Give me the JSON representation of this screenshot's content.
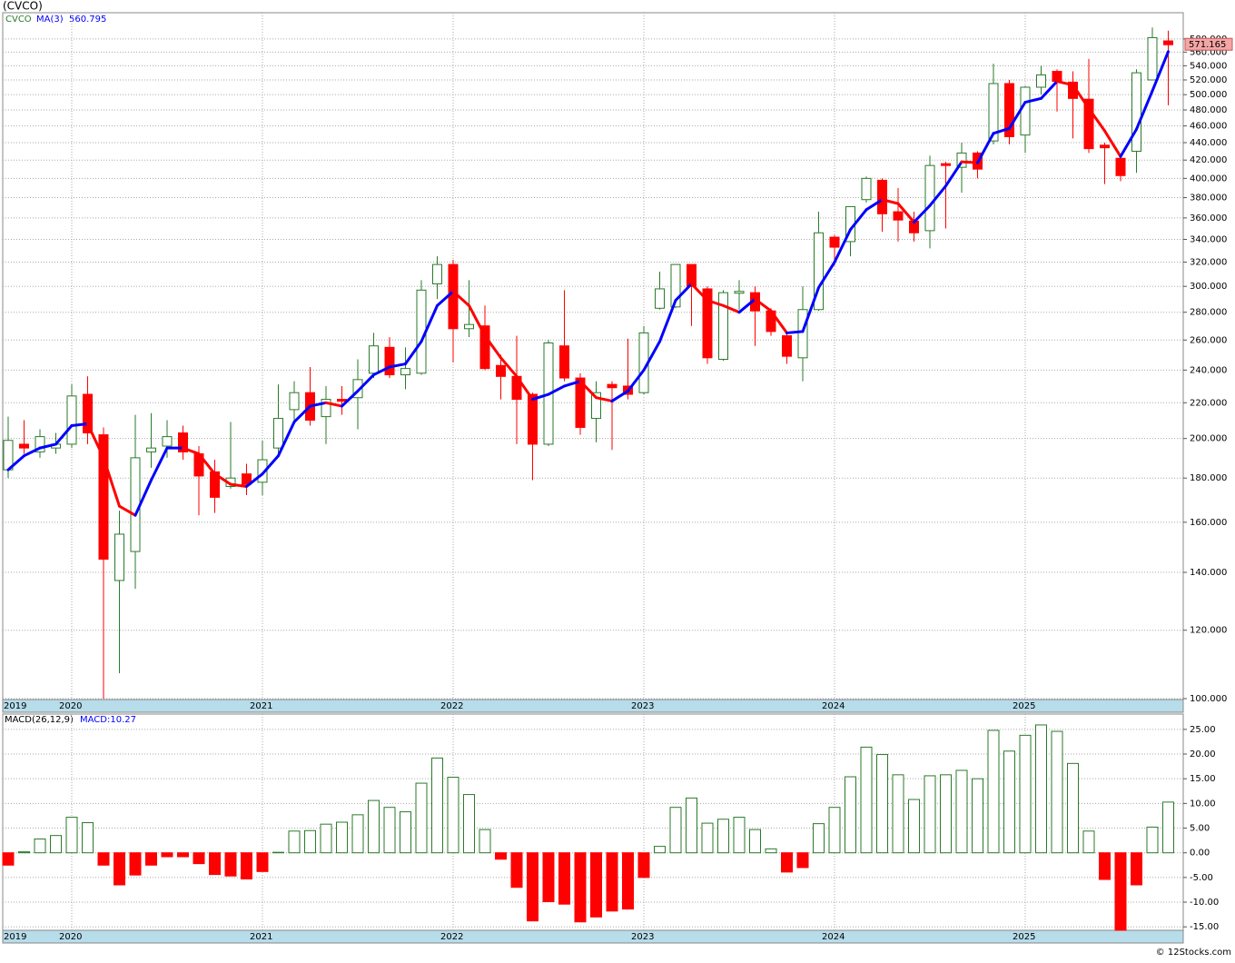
{
  "chart_data": [
    {
      "type": "candlestick",
      "title": "(CVCO)",
      "name": "CVCO",
      "categories": [
        "2019",
        null,
        null,
        null,
        "2020",
        null,
        null,
        null,
        null,
        null,
        null,
        null,
        null,
        null,
        null,
        null,
        "2021",
        null,
        null,
        null,
        null,
        null,
        null,
        null,
        null,
        null,
        null,
        null,
        "2022",
        null,
        null,
        null,
        null,
        null,
        null,
        null,
        null,
        null,
        null,
        null,
        "2023",
        null,
        null,
        null,
        null,
        null,
        null,
        null,
        null,
        null,
        null,
        null,
        "2024",
        null,
        null,
        null,
        null,
        null,
        null,
        null,
        null,
        null,
        null,
        null,
        "2025",
        null,
        null,
        null,
        null,
        null,
        null,
        null,
        null,
        null
      ],
      "open": [
        184,
        197,
        193,
        195,
        197,
        225,
        202,
        137,
        148,
        193,
        196,
        203,
        192,
        183,
        176,
        182,
        178,
        195,
        216,
        226,
        212,
        222,
        223,
        238,
        255,
        237,
        238,
        302,
        318,
        268,
        270,
        243,
        236,
        225,
        197,
        256,
        235,
        211,
        231,
        230,
        226,
        283,
        284,
        318,
        298,
        247,
        295,
        295,
        281,
        263,
        248,
        282,
        342,
        338,
        378,
        398,
        366,
        357,
        348,
        416,
        412,
        428,
        442,
        515,
        449,
        510,
        532,
        517,
        494,
        437,
        422,
        430,
        520,
        577
      ],
      "high": [
        212,
        210,
        205,
        203,
        231,
        236,
        206,
        165,
        213,
        214,
        210,
        207,
        196,
        189,
        209,
        187,
        199,
        231,
        233,
        242,
        230,
        230,
        247,
        265,
        262,
        255,
        305,
        325,
        322,
        305,
        285,
        250,
        263,
        226,
        260,
        297,
        238,
        233,
        233,
        261,
        270,
        312,
        318,
        318,
        300,
        297,
        305,
        300,
        283,
        266,
        300,
        366,
        344,
        371,
        402,
        400,
        390,
        366,
        425,
        418,
        440,
        430,
        543,
        520,
        512,
        540,
        535,
        532,
        550,
        440,
        425,
        535,
        598,
        593
      ],
      "low": [
        180,
        192,
        190,
        192,
        195,
        197,
        100,
        107,
        134,
        185,
        190,
        189,
        163,
        164,
        175,
        172,
        172,
        191,
        208,
        207,
        197,
        213,
        205,
        235,
        235,
        228,
        237,
        290,
        245,
        262,
        240,
        222,
        197,
        179,
        196,
        233,
        202,
        198,
        194,
        222,
        225,
        282,
        283,
        270,
        244,
        246,
        282,
        256,
        263,
        244,
        233,
        281,
        317,
        325,
        375,
        347,
        338,
        338,
        332,
        350,
        385,
        400,
        438,
        438,
        428,
        500,
        478,
        445,
        428,
        394,
        397,
        406,
        520,
        486
      ],
      "close": [
        199,
        195,
        201,
        197,
        224,
        203,
        145,
        155,
        190,
        195,
        201,
        193,
        181,
        171,
        180,
        177,
        189,
        211,
        226,
        210,
        222,
        221,
        234,
        256,
        237,
        241,
        297,
        318,
        268,
        271,
        241,
        236,
        222,
        197,
        258,
        235,
        206,
        226,
        229,
        225,
        265,
        298,
        318,
        300,
        248,
        295,
        296,
        281,
        266,
        249,
        282,
        346,
        333,
        371,
        400,
        364,
        358,
        346,
        414,
        414,
        428,
        410,
        515,
        447,
        510,
        527,
        518,
        495,
        433,
        434,
        403,
        530,
        582,
        571.165
      ],
      "up_color": "#2a7a2a",
      "down_color": "#ff0000",
      "ma": {
        "name": "MA(3)",
        "color": "#0000ff",
        "down_color": "#ff0000",
        "values": [
          184,
          191,
          195,
          197,
          207,
          208,
          190,
          167,
          163,
          179,
          195,
          195,
          192,
          182,
          177,
          176,
          182,
          191,
          209,
          218,
          220,
          218,
          227,
          237,
          242,
          244,
          259,
          285,
          296,
          285,
          263,
          248,
          236,
          222,
          225,
          230,
          233,
          223,
          221,
          227,
          240,
          259,
          289,
          302,
          289,
          285,
          280,
          290,
          281,
          265,
          266,
          299,
          320,
          349,
          368,
          378,
          374,
          356,
          372,
          392,
          418,
          417,
          451,
          457,
          490,
          495,
          518,
          513,
          482,
          454,
          424,
          456,
          505,
          560.795
        ]
      },
      "ylim": [
        100,
        622
      ],
      "log_scale": true,
      "grid": true,
      "yticks": [
        {
          "value": 100,
          "label": "100.000"
        },
        {
          "value": 120,
          "label": "120.000"
        },
        {
          "value": 140,
          "label": "140.000"
        },
        {
          "value": 160,
          "label": "160.000"
        },
        {
          "value": 180,
          "label": "180.000"
        },
        {
          "value": 200,
          "label": "200.000"
        },
        {
          "value": 220,
          "label": "220.000"
        },
        {
          "value": 240,
          "label": "240.000"
        },
        {
          "value": 260,
          "label": "260.000"
        },
        {
          "value": 280,
          "label": "280.000"
        },
        {
          "value": 300,
          "label": "300.000"
        },
        {
          "value": 320,
          "label": "320.000"
        },
        {
          "value": 340,
          "label": "340.000"
        },
        {
          "value": 360,
          "label": "360.000"
        },
        {
          "value": 380,
          "label": "380.000"
        },
        {
          "value": 400,
          "label": "400.000"
        },
        {
          "value": 420,
          "label": "420.000"
        },
        {
          "value": 440,
          "label": "440.000"
        },
        {
          "value": 460,
          "label": "460.000"
        },
        {
          "value": 480,
          "label": "480.000"
        },
        {
          "value": 500,
          "label": "500.000"
        },
        {
          "value": 520,
          "label": "520.000"
        },
        {
          "value": 540,
          "label": "540.000"
        },
        {
          "value": 560,
          "label": "560.000"
        },
        {
          "value": 580,
          "label": "580.000"
        }
      ]
    },
    {
      "type": "bar",
      "title": "MACD(26,12,9)",
      "value_label": "MACD:10.27",
      "categories": [
        "2019",
        null,
        null,
        null,
        "2020",
        null,
        null,
        null,
        null,
        null,
        null,
        null,
        null,
        null,
        null,
        null,
        "2021",
        null,
        null,
        null,
        null,
        null,
        null,
        null,
        null,
        null,
        null,
        null,
        "2022",
        null,
        null,
        null,
        null,
        null,
        null,
        null,
        null,
        null,
        null,
        null,
        "2023",
        null,
        null,
        null,
        null,
        null,
        null,
        null,
        null,
        null,
        null,
        null,
        "2024",
        null,
        null,
        null,
        null,
        null,
        null,
        null,
        null,
        null,
        null,
        null,
        "2025",
        null,
        null,
        null,
        null,
        null,
        null,
        null,
        null,
        null
      ],
      "values": [
        -2.5,
        0.2,
        2.8,
        3.5,
        7.2,
        6.1,
        -2.5,
        -6.5,
        -4.5,
        -2.5,
        -0.8,
        -0.8,
        -2.2,
        -4.4,
        -4.7,
        -5.3,
        -3.8,
        0.1,
        4.4,
        4.5,
        5.8,
        6.2,
        7.7,
        10.6,
        9.2,
        8.3,
        14.1,
        19.2,
        15.3,
        11.8,
        4.7,
        -1.3,
        -7,
        -13.8,
        -9.9,
        -10.4,
        -14,
        -13,
        -11.8,
        -11.4,
        -5,
        1.3,
        9.2,
        11.1,
        6,
        6.8,
        7.2,
        4.7,
        0.8,
        -3.9,
        -3,
        5.9,
        9.2,
        15.4,
        21.4,
        19.9,
        15.8,
        10.8,
        15.6,
        15.8,
        16.7,
        15,
        24.8,
        20.6,
        23.8,
        25.9,
        24.6,
        18.1,
        4.4,
        -5.4,
        -15.7,
        -6.5,
        5.2,
        10.27
      ],
      "up_color": "#2a7a2a",
      "down_color": "#ff0000",
      "ylim": [
        -15.7,
        28.1
      ],
      "grid": true,
      "yticks": [
        {
          "value": 25,
          "label": "25.00"
        },
        {
          "value": 20,
          "label": "20.00"
        },
        {
          "value": 15,
          "label": "15.00"
        },
        {
          "value": 10,
          "label": "10.00"
        },
        {
          "value": 5,
          "label": "5.00"
        },
        {
          "value": 0,
          "label": "0.00"
        },
        {
          "value": -5,
          "label": "-5.00"
        },
        {
          "value": -10,
          "label": "-10.00"
        },
        {
          "value": -15,
          "label": "-15.00"
        }
      ]
    }
  ],
  "footer": "© 12Stocks.com"
}
